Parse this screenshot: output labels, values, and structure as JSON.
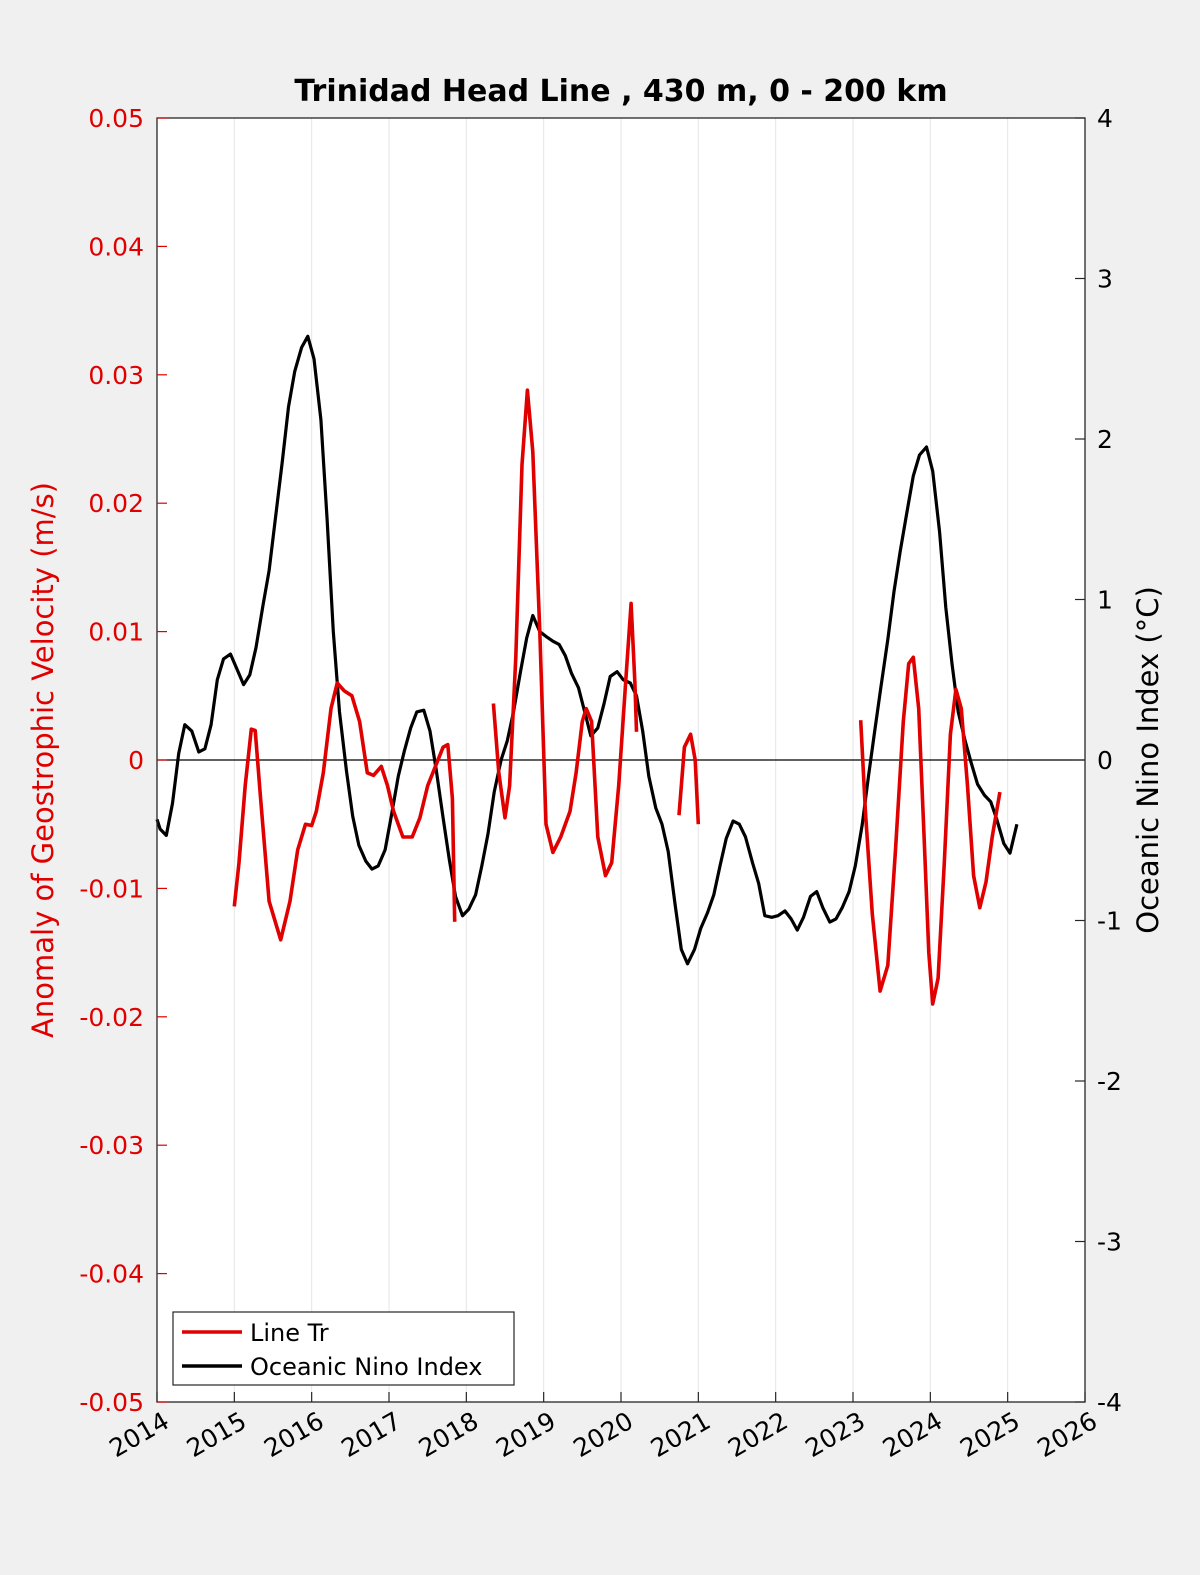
{
  "chart_data": {
    "type": "line",
    "title": "Trinidad Head Line , 430 m, 0 - 200 km",
    "xlim": [
      2014,
      2026
    ],
    "x_ticks": [
      "2014",
      "2015",
      "2016",
      "2017",
      "2018",
      "2019",
      "2020",
      "2021",
      "2022",
      "2023",
      "2024",
      "2025",
      "2026"
    ],
    "grid": "vertical",
    "y_left": {
      "label": "Anomaly of Geostrophic Velocity (m/s)",
      "lim": [
        -0.05,
        0.05
      ],
      "ticks": [
        "0.05",
        "0.04",
        "0.03",
        "0.02",
        "0.01",
        "0",
        "-0.01",
        "-0.02",
        "-0.03",
        "-0.04",
        "-0.05"
      ],
      "color": "#e00000"
    },
    "y_right": {
      "label": "Oceanic Nino Index (°C)",
      "lim": [
        -4,
        4
      ],
      "ticks": [
        "4",
        "3",
        "2",
        "1",
        "0",
        "-1",
        "-2",
        "-3",
        "-4"
      ],
      "color": "#000000"
    },
    "legend": {
      "position": "bottom-left",
      "entries": [
        "Line Tr",
        "Oceanic Nino Index"
      ]
    },
    "series": [
      {
        "name": "Line Tr",
        "axis": "left",
        "color": "#e00000",
        "segments": [
          [
            [
              2015.0,
              -0.0114
            ],
            [
              2015.06,
              -0.008
            ],
            [
              2015.14,
              -0.002
            ],
            [
              2015.22,
              0.0024
            ],
            [
              2015.27,
              0.0023
            ],
            [
              2015.34,
              -0.003
            ],
            [
              2015.45,
              -0.011
            ],
            [
              2015.6,
              -0.014
            ],
            [
              2015.72,
              -0.011
            ],
            [
              2015.82,
              -0.007
            ],
            [
              2015.92,
              -0.005
            ],
            [
              2016.0,
              -0.0051
            ],
            [
              2016.06,
              -0.004
            ],
            [
              2016.15,
              -0.001
            ],
            [
              2016.25,
              0.004
            ],
            [
              2016.33,
              0.006
            ],
            [
              2016.42,
              0.0054
            ],
            [
              2016.52,
              0.005
            ],
            [
              2016.62,
              0.003
            ],
            [
              2016.72,
              -0.001
            ],
            [
              2016.8,
              -0.0012
            ],
            [
              2016.9,
              -0.0005
            ],
            [
              2016.98,
              -0.002
            ],
            [
              2017.06,
              -0.004
            ],
            [
              2017.18,
              -0.006
            ],
            [
              2017.3,
              -0.006
            ],
            [
              2017.4,
              -0.0045
            ],
            [
              2017.5,
              -0.002
            ],
            [
              2017.6,
              -0.0005
            ],
            [
              2017.7,
              0.001
            ],
            [
              2017.76,
              0.0012
            ],
            [
              2017.82,
              -0.003
            ],
            [
              2017.85,
              -0.0126
            ]
          ],
          [
            [
              2018.35,
              0.0044
            ],
            [
              2018.42,
              -0.001
            ],
            [
              2018.5,
              -0.0045
            ],
            [
              2018.56,
              -0.002
            ],
            [
              2018.64,
              0.008
            ],
            [
              2018.72,
              0.023
            ],
            [
              2018.79,
              0.0288
            ],
            [
              2018.86,
              0.024
            ],
            [
              2018.95,
              0.01
            ],
            [
              2019.03,
              -0.005
            ],
            [
              2019.12,
              -0.0072
            ],
            [
              2019.22,
              -0.006
            ],
            [
              2019.34,
              -0.004
            ],
            [
              2019.42,
              -0.001
            ],
            [
              2019.5,
              0.003
            ],
            [
              2019.55,
              0.004
            ],
            [
              2019.62,
              0.003
            ],
            [
              2019.7,
              -0.006
            ],
            [
              2019.8,
              -0.009
            ],
            [
              2019.88,
              -0.008
            ],
            [
              2019.97,
              -0.002
            ],
            [
              2020.06,
              0.006
            ],
            [
              2020.13,
              0.0122
            ],
            [
              2020.18,
              0.006
            ],
            [
              2020.2,
              0.0022
            ]
          ],
          [
            [
              2020.75,
              -0.0043
            ],
            [
              2020.82,
              0.001
            ],
            [
              2020.9,
              0.002
            ],
            [
              2020.96,
              0.0
            ],
            [
              2021.0,
              -0.005
            ]
          ],
          [
            [
              2023.1,
              0.0031
            ],
            [
              2023.16,
              -0.004
            ],
            [
              2023.25,
              -0.012
            ],
            [
              2023.35,
              -0.018
            ],
            [
              2023.45,
              -0.016
            ],
            [
              2023.55,
              -0.007
            ],
            [
              2023.65,
              0.003
            ],
            [
              2023.72,
              0.0075
            ],
            [
              2023.78,
              0.008
            ],
            [
              2023.85,
              0.004
            ],
            [
              2023.92,
              -0.006
            ],
            [
              2023.98,
              -0.015
            ],
            [
              2024.03,
              -0.019
            ],
            [
              2024.1,
              -0.017
            ],
            [
              2024.18,
              -0.008
            ],
            [
              2024.26,
              0.002
            ],
            [
              2024.33,
              0.0055
            ],
            [
              2024.4,
              0.004
            ],
            [
              2024.48,
              -0.002
            ],
            [
              2024.56,
              -0.009
            ],
            [
              2024.64,
              -0.0115
            ],
            [
              2024.72,
              -0.0095
            ],
            [
              2024.8,
              -0.006
            ],
            [
              2024.9,
              -0.0025
            ]
          ]
        ]
      },
      {
        "name": "Oceanic Nino Index",
        "axis": "right",
        "color": "#000000",
        "points": [
          [
            2014.0,
            -0.37
          ],
          [
            2014.04,
            -0.43
          ],
          [
            2014.12,
            -0.47
          ],
          [
            2014.2,
            -0.27
          ],
          [
            2014.28,
            0.04
          ],
          [
            2014.36,
            0.22
          ],
          [
            2014.45,
            0.18
          ],
          [
            2014.54,
            0.05
          ],
          [
            2014.62,
            0.07
          ],
          [
            2014.7,
            0.22
          ],
          [
            2014.78,
            0.5
          ],
          [
            2014.86,
            0.63
          ],
          [
            2014.95,
            0.66
          ],
          [
            2015.03,
            0.57
          ],
          [
            2015.12,
            0.47
          ],
          [
            2015.2,
            0.53
          ],
          [
            2015.28,
            0.7
          ],
          [
            2015.37,
            0.96
          ],
          [
            2015.45,
            1.18
          ],
          [
            2015.53,
            1.5
          ],
          [
            2015.62,
            1.86
          ],
          [
            2015.7,
            2.2
          ],
          [
            2015.78,
            2.42
          ],
          [
            2015.87,
            2.57
          ],
          [
            2015.95,
            2.64
          ],
          [
            2016.03,
            2.5
          ],
          [
            2016.12,
            2.12
          ],
          [
            2016.2,
            1.5
          ],
          [
            2016.28,
            0.8
          ],
          [
            2016.36,
            0.3
          ],
          [
            2016.45,
            -0.07
          ],
          [
            2016.53,
            -0.35
          ],
          [
            2016.61,
            -0.53
          ],
          [
            2016.7,
            -0.63
          ],
          [
            2016.78,
            -0.68
          ],
          [
            2016.86,
            -0.66
          ],
          [
            2016.95,
            -0.56
          ],
          [
            2017.03,
            -0.35
          ],
          [
            2017.12,
            -0.1
          ],
          [
            2017.2,
            0.06
          ],
          [
            2017.28,
            0.2
          ],
          [
            2017.36,
            0.3
          ],
          [
            2017.45,
            0.31
          ],
          [
            2017.53,
            0.18
          ],
          [
            2017.61,
            -0.06
          ],
          [
            2017.7,
            -0.36
          ],
          [
            2017.78,
            -0.62
          ],
          [
            2017.86,
            -0.85
          ],
          [
            2017.95,
            -0.97
          ],
          [
            2018.03,
            -0.93
          ],
          [
            2018.12,
            -0.84
          ],
          [
            2018.2,
            -0.66
          ],
          [
            2018.28,
            -0.46
          ],
          [
            2018.36,
            -0.2
          ],
          [
            2018.45,
            0.0
          ],
          [
            2018.53,
            0.12
          ],
          [
            2018.61,
            0.3
          ],
          [
            2018.7,
            0.55
          ],
          [
            2018.78,
            0.76
          ],
          [
            2018.86,
            0.9
          ],
          [
            2018.95,
            0.8
          ],
          [
            2019.03,
            0.77
          ],
          [
            2019.12,
            0.74
          ],
          [
            2019.2,
            0.72
          ],
          [
            2019.28,
            0.65
          ],
          [
            2019.36,
            0.54
          ],
          [
            2019.45,
            0.45
          ],
          [
            2019.53,
            0.3
          ],
          [
            2019.61,
            0.15
          ],
          [
            2019.7,
            0.2
          ],
          [
            2019.78,
            0.35
          ],
          [
            2019.86,
            0.52
          ],
          [
            2019.95,
            0.55
          ],
          [
            2020.03,
            0.5
          ],
          [
            2020.12,
            0.48
          ],
          [
            2020.2,
            0.4
          ],
          [
            2020.28,
            0.18
          ],
          [
            2020.36,
            -0.1
          ],
          [
            2020.45,
            -0.3
          ],
          [
            2020.53,
            -0.4
          ],
          [
            2020.61,
            -0.57
          ],
          [
            2020.7,
            -0.9
          ],
          [
            2020.78,
            -1.18
          ],
          [
            2020.86,
            -1.27
          ],
          [
            2020.95,
            -1.18
          ],
          [
            2021.03,
            -1.05
          ],
          [
            2021.12,
            -0.95
          ],
          [
            2021.2,
            -0.84
          ],
          [
            2021.28,
            -0.66
          ],
          [
            2021.36,
            -0.49
          ],
          [
            2021.45,
            -0.38
          ],
          [
            2021.53,
            -0.4
          ],
          [
            2021.61,
            -0.48
          ],
          [
            2021.7,
            -0.64
          ],
          [
            2021.78,
            -0.77
          ],
          [
            2021.86,
            -0.97
          ],
          [
            2021.95,
            -0.98
          ],
          [
            2022.03,
            -0.97
          ],
          [
            2022.12,
            -0.94
          ],
          [
            2022.2,
            -0.99
          ],
          [
            2022.28,
            -1.06
          ],
          [
            2022.36,
            -0.98
          ],
          [
            2022.45,
            -0.85
          ],
          [
            2022.53,
            -0.82
          ],
          [
            2022.61,
            -0.92
          ],
          [
            2022.7,
            -1.01
          ],
          [
            2022.78,
            -0.99
          ],
          [
            2022.86,
            -0.92
          ],
          [
            2022.95,
            -0.82
          ],
          [
            2023.03,
            -0.66
          ],
          [
            2023.12,
            -0.4
          ],
          [
            2023.2,
            -0.1
          ],
          [
            2023.28,
            0.18
          ],
          [
            2023.36,
            0.45
          ],
          [
            2023.45,
            0.75
          ],
          [
            2023.53,
            1.05
          ],
          [
            2023.61,
            1.3
          ],
          [
            2023.7,
            1.55
          ],
          [
            2023.78,
            1.77
          ],
          [
            2023.86,
            1.9
          ],
          [
            2023.95,
            1.95
          ],
          [
            2024.03,
            1.8
          ],
          [
            2024.12,
            1.42
          ],
          [
            2024.2,
            0.95
          ],
          [
            2024.28,
            0.6
          ],
          [
            2024.36,
            0.3
          ],
          [
            2024.45,
            0.12
          ],
          [
            2024.53,
            -0.02
          ],
          [
            2024.61,
            -0.15
          ],
          [
            2024.7,
            -0.22
          ],
          [
            2024.78,
            -0.26
          ],
          [
            2024.86,
            -0.37
          ],
          [
            2024.95,
            -0.52
          ],
          [
            2025.03,
            -0.58
          ],
          [
            2025.12,
            -0.4
          ]
        ]
      }
    ]
  }
}
